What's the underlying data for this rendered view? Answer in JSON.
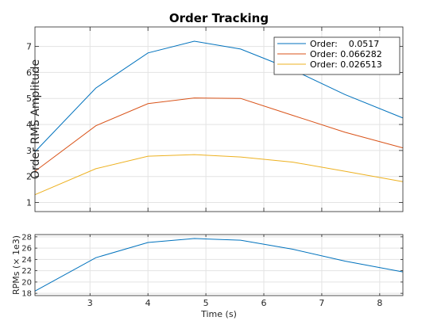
{
  "chart_data": [
    {
      "type": "line",
      "title": "Order Tracking",
      "xlabel": "",
      "ylabel": "Order RMS Amplitude",
      "xlim": [
        2.05,
        8.4
      ],
      "ylim": [
        0.65,
        7.75
      ],
      "xticks": [
        3,
        4,
        5,
        6,
        7,
        8
      ],
      "yticks": [
        1,
        2,
        3,
        4,
        5,
        6,
        7
      ],
      "xtick_labels_visible": false,
      "grid": true,
      "legend_position": "top-right",
      "series": [
        {
          "name": "Order:    0.0517",
          "color": "#0072BD",
          "x": [
            2.05,
            3.1,
            4.0,
            4.8,
            5.6,
            6.5,
            7.4,
            8.4
          ],
          "y": [
            2.95,
            5.4,
            6.75,
            7.2,
            6.9,
            6.1,
            5.15,
            4.25
          ]
        },
        {
          "name": "Order: 0.066282",
          "color": "#D95319",
          "x": [
            2.05,
            3.1,
            4.0,
            4.8,
            5.6,
            6.5,
            7.4,
            8.4
          ],
          "y": [
            2.2,
            3.95,
            4.8,
            5.02,
            5.0,
            4.35,
            3.7,
            3.1
          ]
        },
        {
          "name": "Order: 0.026513",
          "color": "#EDB120",
          "x": [
            2.05,
            3.1,
            4.0,
            4.8,
            5.6,
            6.5,
            7.4,
            8.4
          ],
          "y": [
            1.3,
            2.3,
            2.78,
            2.84,
            2.75,
            2.55,
            2.2,
            1.8
          ]
        }
      ]
    },
    {
      "type": "line",
      "title": "",
      "xlabel": "Time (s)",
      "ylabel": "RPMs (× 1e3)",
      "xlim": [
        2.05,
        8.4
      ],
      "ylim": [
        17.6,
        28.4
      ],
      "xticks": [
        3,
        4,
        5,
        6,
        7,
        8
      ],
      "yticks": [
        18,
        20,
        22,
        24,
        26,
        28
      ],
      "xtick_labels_visible": true,
      "grid": true,
      "series": [
        {
          "color": "#0072BD",
          "x": [
            2.05,
            3.1,
            4.0,
            4.8,
            5.6,
            6.5,
            7.4,
            8.4
          ],
          "y": [
            18.4,
            24.3,
            27.0,
            27.7,
            27.4,
            25.8,
            23.7,
            21.8
          ]
        }
      ]
    }
  ]
}
